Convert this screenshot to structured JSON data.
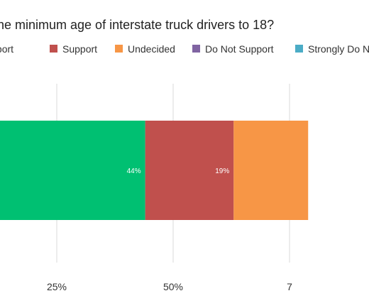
{
  "chart_data": {
    "type": "bar",
    "orientation": "horizontal",
    "stacked": true,
    "title": "he minimum age of interstate truck drivers to 18?",
    "xlim": [
      0,
      100
    ],
    "x_tick_labels": [
      "25%",
      "50%",
      "7"
    ],
    "grid": true,
    "legend_position": "top",
    "series": [
      {
        "name": "Support",
        "legend_label": "Support",
        "value": 44,
        "label": "44%",
        "color": "#00c072"
      },
      {
        "name": "Support",
        "legend_label": "Support",
        "value": 19,
        "label": "19%",
        "color": "#c0504d"
      },
      {
        "name": "Undecided",
        "legend_label": "Undecided",
        "value": 16,
        "label": "",
        "color": "#f79646"
      },
      {
        "name": "Do Not Support",
        "legend_label": "Do Not Support",
        "value": 0,
        "label": "",
        "color": "#8064a2"
      },
      {
        "name": "Strongly Do Not Support",
        "legend_label": "Strongly Do N",
        "value": 0,
        "label": "",
        "color": "#4bacc6"
      }
    ]
  }
}
